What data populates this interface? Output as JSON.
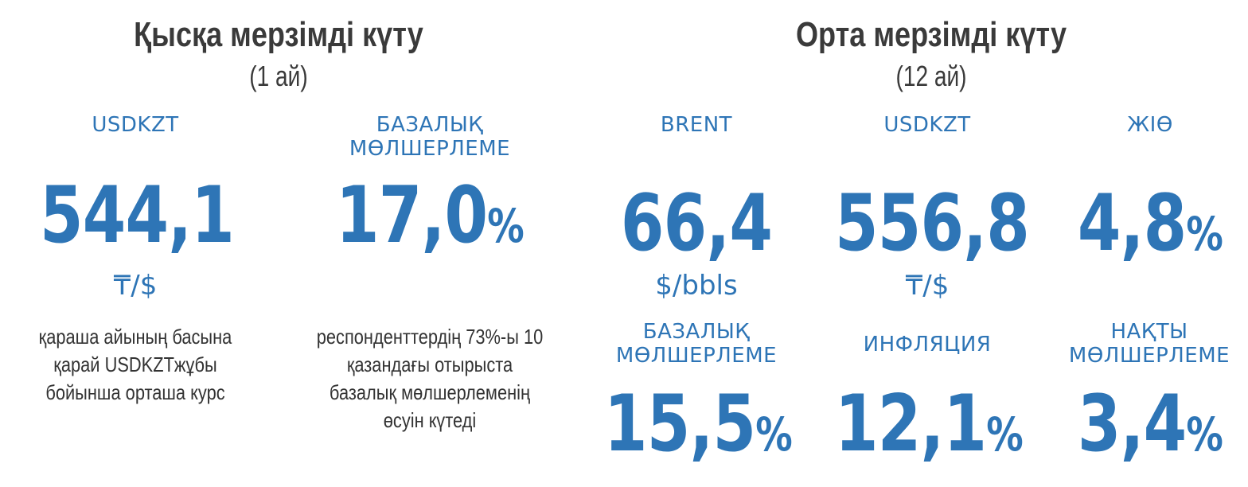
{
  "short_term": {
    "title": "Қысқа мерзімді күту",
    "period": "(1 ай)",
    "usdkzt": {
      "label": "USDKZT",
      "value": "544,1",
      "unit": "₸/$",
      "note": "қараша айының басына қарай USDKZTжұбы бойынша орташа курс"
    },
    "base_rate": {
      "label_line1": "БАЗАЛЫҚ",
      "label_line2": "МӨЛШЕРЛЕМЕ",
      "value": "17,0",
      "pct": "%",
      "note": "респонденттердің 73%-ы 10 қазандағы отырыста базалық мөлшерлеменің өсуін күтеді"
    }
  },
  "mid_term": {
    "title": "Орта мерзімді күту",
    "period": "(12 ай)",
    "brent": {
      "label": "BRENT",
      "value": "66,4",
      "unit": "$/bbls"
    },
    "usdkzt": {
      "label": "USDKZT",
      "value": "556,8",
      "unit": "₸/$"
    },
    "gdp": {
      "label": "ЖІӨ",
      "value": "4,8",
      "pct": "%"
    },
    "base_rate": {
      "label_line1": "БАЗАЛЫҚ",
      "label_line2": "МӨЛШЕРЛЕМЕ",
      "value": "15,5",
      "pct": "%"
    },
    "inflation": {
      "label": "ИНФЛЯЦИЯ",
      "value": "12,1",
      "pct": "%"
    },
    "real_rate": {
      "label_line1": "НАҚТЫ",
      "label_line2": "МӨЛШЕРЛЕМЕ",
      "value": "3,4",
      "pct": "%"
    }
  },
  "colors": {
    "accent": "#2e75b6",
    "heading": "#3a3a3a",
    "body_text": "#333333"
  }
}
